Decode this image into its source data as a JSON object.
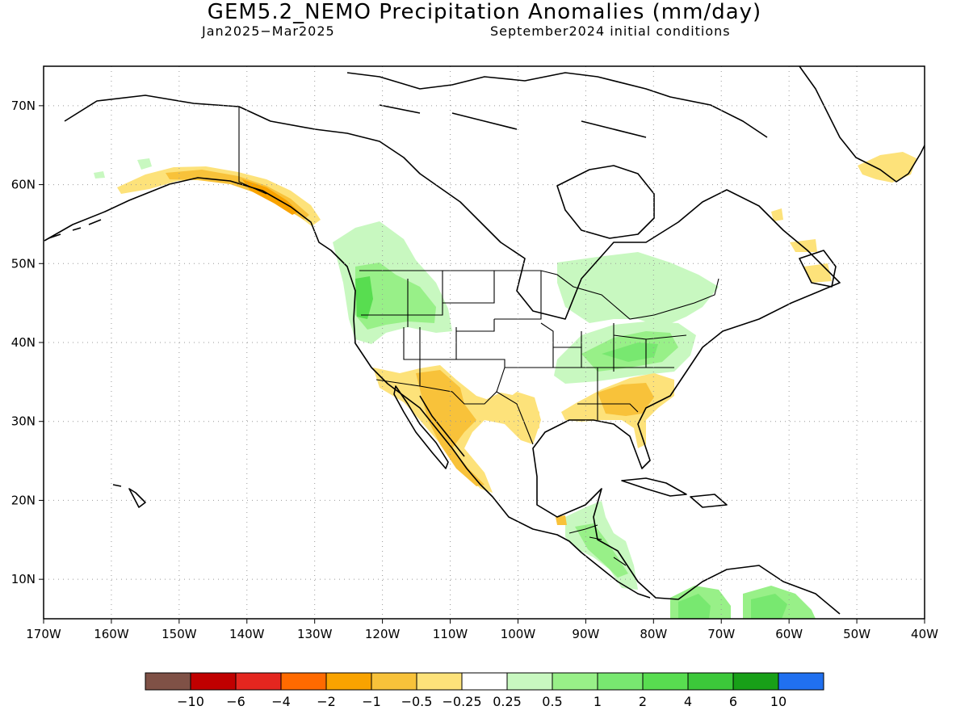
{
  "title": "GEM5.2_NEMO Precipitation Anomalies (mm/day)",
  "subtitle_left": "Jan2025−Mar2025",
  "subtitle_right": "September2024 initial conditions",
  "map": {
    "lon_range": [
      -170,
      -40
    ],
    "lat_range": [
      5,
      75
    ],
    "lon_ticks": [
      -170,
      -160,
      -150,
      -140,
      -130,
      -120,
      -110,
      -100,
      -90,
      -80,
      -70,
      -60,
      -50,
      -40
    ],
    "lat_ticks": [
      10,
      20,
      30,
      40,
      50,
      60,
      70
    ],
    "lon_tick_labels": [
      "170W",
      "160W",
      "150W",
      "140W",
      "130W",
      "120W",
      "110W",
      "100W",
      "90W",
      "80W",
      "70W",
      "60W",
      "50W",
      "40W"
    ],
    "lat_tick_labels": [
      "10N",
      "20N",
      "30N",
      "40N",
      "50N",
      "60N",
      "70N"
    ],
    "grid": "dotted"
  },
  "colorbar": {
    "colors": [
      "#7f5146",
      "#c00000",
      "#e4261f",
      "#ff6a00",
      "#f9a300",
      "#f8c23a",
      "#fde27a",
      "#ffffff",
      "#c8f8c0",
      "#98f088",
      "#78e870",
      "#58dd50",
      "#3cc83a",
      "#18a018",
      "#2070f0"
    ],
    "labels": [
      "−10",
      "−6",
      "−4",
      "−2",
      "−1",
      "−0.5",
      "−0.25",
      "0.25",
      "0.5",
      "1",
      "2",
      "4",
      "6",
      "10"
    ]
  },
  "regions": [
    {
      "name": "alaska-gulf-coast",
      "category": "-0.5 to -0.25"
    },
    {
      "name": "se-alaska-coast",
      "category": "-1 to -0.5"
    },
    {
      "name": "pacific-northwest",
      "category": "0.5 to 1"
    },
    {
      "name": "us-southwest-mexico",
      "category": "-1 to -0.5"
    },
    {
      "name": "ohio-valley",
      "category": "0.5 to 1"
    },
    {
      "name": "great-lakes-canada",
      "category": "0.25 to 0.5"
    },
    {
      "name": "us-southeast",
      "category": "-1 to -0.5"
    },
    {
      "name": "greenland-south",
      "category": "-0.5 to -0.25"
    },
    {
      "name": "newfoundland",
      "category": "-0.5 to -0.25"
    },
    {
      "name": "central-america",
      "category": "0.5 to 1"
    },
    {
      "name": "northern-south-america",
      "category": "0.5 to 1"
    }
  ]
}
